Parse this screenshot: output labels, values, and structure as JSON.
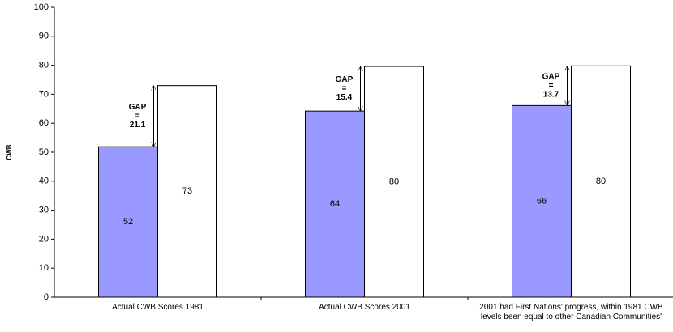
{
  "chart_data": {
    "type": "bar",
    "y_label": "CWB",
    "categories": [
      "Actual CWB Scores 1981",
      "Actual CWB Scores 2001",
      "2001 had First Nations' progress, within 1981 CWB levels been equal to other Canadian Communities'"
    ],
    "series": [
      {
        "color": "#9999ff",
        "values": [
          51.9,
          64.2,
          66.1
        ],
        "value_labels": [
          "52",
          "64",
          "66"
        ]
      },
      {
        "color": "#ffffff",
        "values": [
          73,
          79.6,
          79.8
        ],
        "value_labels": [
          "73",
          "80",
          "80"
        ]
      }
    ],
    "annotations": [
      {
        "lines": [
          "GAP",
          "=",
          "21.1"
        ]
      },
      {
        "lines": [
          "GAP",
          "=",
          "15.4"
        ]
      },
      {
        "lines": [
          "GAP",
          "=",
          "13.7"
        ]
      }
    ],
    "ylim": [
      0,
      100
    ],
    "yticks": [
      0,
      10,
      20,
      30,
      40,
      50,
      60,
      70,
      80,
      90,
      100
    ],
    "grid": false
  }
}
